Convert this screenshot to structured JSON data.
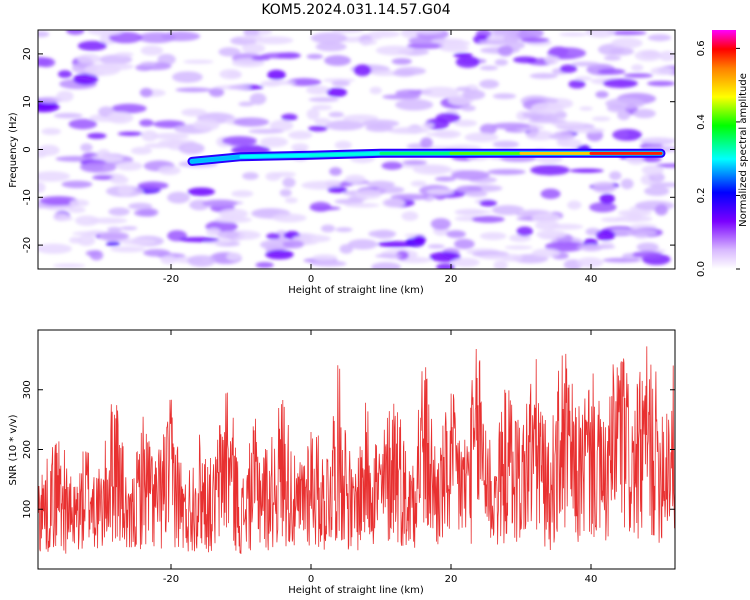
{
  "figure": {
    "title": "KOM5.2024.031.14.57.G04"
  },
  "chart_data": [
    {
      "type": "heatmap",
      "xlabel": "Height of straight line (km)",
      "ylabel": "Frequency (Hz)",
      "xlim": [
        -39,
        52
      ],
      "ylim": [
        -25,
        25
      ],
      "xticks": [
        -20,
        0,
        20,
        40
      ],
      "yticks": [
        -20,
        -10,
        0,
        10,
        20
      ],
      "colorbar": {
        "label": "Normalized spectral amplitude",
        "range": [
          0,
          0.65
        ],
        "ticks": [
          0.0,
          0.2,
          0.4,
          0.6
        ],
        "tick_labels": [
          "0.0",
          "0.2",
          "0.4",
          "0.6"
        ]
      },
      "ridge": {
        "x": [
          -17,
          -10,
          0,
          10,
          20,
          30,
          40,
          50
        ],
        "frequency_hz": [
          -2.5,
          -1.5,
          -1.2,
          -0.8,
          -0.8,
          -0.8,
          -0.8,
          -0.8
        ],
        "amplitude": [
          0.25,
          0.3,
          0.3,
          0.32,
          0.38,
          0.45,
          0.55,
          0.62
        ]
      }
    },
    {
      "type": "line",
      "xlabel": "Height of straight line (km)",
      "ylabel": "SNR (10 * v/v)",
      "xlim": [
        -39,
        52
      ],
      "ylim": [
        0,
        400
      ],
      "xticks": [
        -20,
        0,
        20,
        40
      ],
      "yticks": [
        100,
        200,
        300
      ],
      "color": "#e83030",
      "series": [
        {
          "x": [
            -38,
            -36,
            -34,
            -32,
            -30,
            -28,
            -26,
            -24,
            -22,
            -20,
            -18,
            -16,
            -14,
            -12,
            -10,
            -8,
            -6,
            -4,
            -2,
            0,
            2,
            4,
            6,
            8,
            10,
            12,
            14,
            16,
            18,
            20,
            22,
            24,
            26,
            28,
            30,
            32,
            34,
            36,
            38,
            40,
            42,
            44,
            46,
            48,
            50,
            52
          ],
          "values": [
            140,
            190,
            110,
            175,
            130,
            260,
            95,
            210,
            150,
            230,
            120,
            185,
            140,
            270,
            115,
            200,
            160,
            245,
            130,
            210,
            150,
            280,
            125,
            230,
            170,
            260,
            140,
            300,
            160,
            240,
            185,
            320,
            150,
            255,
            200,
            290,
            165,
            310,
            210,
            270,
            190,
            330,
            220,
            300,
            240,
            280
          ]
        }
      ]
    }
  ]
}
